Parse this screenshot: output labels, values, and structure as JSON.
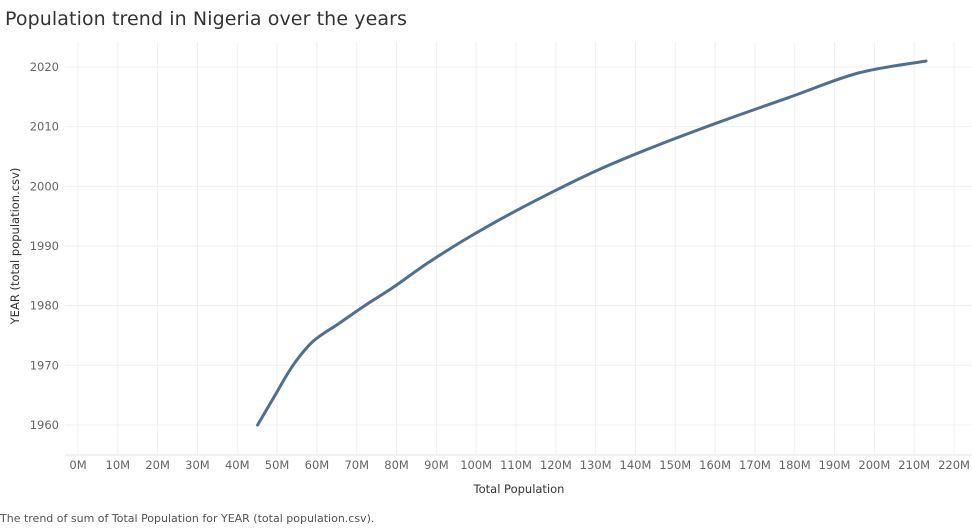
{
  "title": "Population trend in Nigeria over the years",
  "caption": "The trend of sum of Total Population for YEAR (total population.csv).",
  "chart_data": {
    "type": "line",
    "title": "Population trend in Nigeria over the years",
    "xlabel": "Total Population",
    "ylabel": "YEAR (total population.csv)",
    "xlim": [
      0,
      220000000
    ],
    "ylim": [
      1957,
      2024
    ],
    "x_ticks": [
      0,
      10000000,
      20000000,
      30000000,
      40000000,
      50000000,
      60000000,
      70000000,
      80000000,
      90000000,
      100000000,
      110000000,
      120000000,
      130000000,
      140000000,
      150000000,
      160000000,
      170000000,
      180000000,
      190000000,
      200000000,
      210000000,
      220000000
    ],
    "x_tick_labels": [
      "0M",
      "10M",
      "20M",
      "30M",
      "40M",
      "50M",
      "60M",
      "70M",
      "80M",
      "90M",
      "100M",
      "110M",
      "120M",
      "130M",
      "140M",
      "150M",
      "160M",
      "170M",
      "180M",
      "190M",
      "200M",
      "210M",
      "220M"
    ],
    "y_ticks": [
      1960,
      1970,
      1980,
      1990,
      2000,
      2010,
      2020
    ],
    "y_tick_labels": [
      "1960",
      "1970",
      "1980",
      "1990",
      "2000",
      "2010",
      "2020"
    ],
    "grid": true,
    "color": "#4e6f94",
    "series": [
      {
        "x": [
          45100000,
          49500000,
          54000000,
          59000000,
          65500000,
          72000000,
          79000000,
          87500000,
          97000000,
          107500000,
          119000000,
          131500000,
          146000000,
          162000000,
          179000000,
          196000000,
          213000000
        ],
        "y": [
          1960,
          1965,
          1970,
          1974,
          1977,
          1980,
          1983,
          1987,
          1991,
          1995,
          1999,
          2003,
          2007,
          2011,
          2015,
          2019,
          2021
        ]
      }
    ]
  }
}
